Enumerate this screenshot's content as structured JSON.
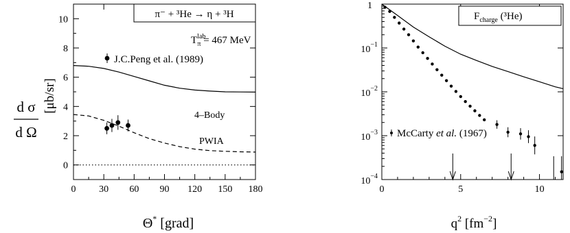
{
  "chart_data": [
    {
      "type": "line",
      "title_box": {
        "text": "π⁻ + ³He → η + ³H"
      },
      "ylabel_parts": {
        "num": "d σ",
        "den": "d Ω",
        "unit": "[μb/sr]"
      },
      "xlabel_parts": {
        "sym": "Θ",
        "sup": "*",
        "rest": " [grad]"
      },
      "energy_label": {
        "main": "T",
        "sub": "π",
        "sup": "lab",
        "rest": " = 467 MeV"
      },
      "data_legend": "J.C.Peng  et al.  (1989)",
      "xlim": [
        0,
        180
      ],
      "ylim": [
        -1,
        11
      ],
      "x_ticks": [
        "0",
        "30",
        "60",
        "90",
        "120",
        "150",
        "180"
      ],
      "y_ticks": [
        "0",
        "2",
        "4",
        "6",
        "8",
        "10"
      ],
      "series": [
        {
          "name": "4–Body",
          "style": "solid",
          "x": [
            0,
            15,
            30,
            45,
            60,
            75,
            90,
            105,
            120,
            135,
            150,
            165,
            180
          ],
          "y": [
            6.8,
            6.75,
            6.6,
            6.35,
            6.05,
            5.75,
            5.45,
            5.25,
            5.12,
            5.05,
            5.0,
            4.99,
            4.98
          ]
        },
        {
          "name": "PWIA",
          "style": "dashed",
          "x": [
            0,
            15,
            30,
            45,
            60,
            75,
            90,
            105,
            120,
            135,
            150,
            165,
            180
          ],
          "y": [
            3.45,
            3.35,
            3.05,
            2.65,
            2.2,
            1.8,
            1.5,
            1.25,
            1.08,
            0.98,
            0.93,
            0.9,
            0.88
          ]
        },
        {
          "name": "",
          "style": "dotted",
          "x": [
            0,
            180
          ],
          "y": [
            0,
            0
          ]
        }
      ],
      "points": {
        "x": [
          33,
          38,
          44,
          54
        ],
        "y": [
          2.5,
          2.7,
          2.9,
          2.7
        ],
        "err": [
          0.4,
          0.45,
          0.5,
          0.4
        ]
      }
    },
    {
      "type": "scatter",
      "title_box": {
        "main": "F",
        "sub": "charge",
        "rest": " (³He)"
      },
      "xlabel_parts": {
        "sym": "q",
        "sup": "2",
        "rest": " [fm",
        "sup2": "−2",
        "tail": "]"
      },
      "data_legend": {
        "name": "McCarty ",
        "et_al": "et al.",
        "year": " (1967)"
      },
      "xlim": [
        0,
        11.5
      ],
      "ylim_log10": [
        -4,
        0
      ],
      "x_ticks": [
        "0",
        "5",
        "10"
      ],
      "y_ticks": [
        {
          "base": "1",
          "exp": ""
        },
        {
          "base": "10",
          "exp": "−1"
        },
        {
          "base": "10",
          "exp": "−2"
        },
        {
          "base": "10",
          "exp": "−3"
        },
        {
          "base": "10",
          "exp": "−4"
        }
      ],
      "theory_curve": {
        "x": [
          0,
          1,
          2,
          3,
          4,
          5,
          6,
          7,
          8,
          9,
          10,
          11,
          11.5
        ],
        "y": [
          1.0,
          0.55,
          0.3,
          0.18,
          0.11,
          0.072,
          0.052,
          0.038,
          0.029,
          0.022,
          0.017,
          0.013,
          0.0118
        ]
      },
      "data_points": {
        "x": [
          0.2,
          0.5,
          0.8,
          1.1,
          1.4,
          1.7,
          2.0,
          2.3,
          2.6,
          2.9,
          3.2,
          3.5,
          3.8,
          4.1,
          4.4,
          4.7,
          5.0,
          5.3,
          5.6,
          5.9,
          6.2,
          6.5,
          7.3,
          8.0,
          8.8,
          9.3,
          9.7
        ],
        "y": [
          0.85,
          0.68,
          0.5,
          0.37,
          0.27,
          0.2,
          0.145,
          0.105,
          0.078,
          0.058,
          0.043,
          0.032,
          0.024,
          0.018,
          0.0135,
          0.0102,
          0.0078,
          0.006,
          0.0047,
          0.0037,
          0.0029,
          0.0023,
          0.0018,
          0.0012,
          0.0011,
          0.00095,
          0.0006
        ],
        "err_factor": [
          1,
          1,
          1,
          1,
          1,
          1,
          1,
          1,
          1,
          1,
          1,
          1,
          1,
          1,
          1,
          1,
          1,
          1,
          1,
          1,
          1,
          1,
          1.25,
          1.3,
          1.35,
          1.4,
          1.6
        ]
      },
      "arrows_x": [
        4.5,
        8.2,
        10.9,
        11.4
      ],
      "arrow_point": {
        "x": 11.4,
        "y": 0.00015
      }
    }
  ]
}
